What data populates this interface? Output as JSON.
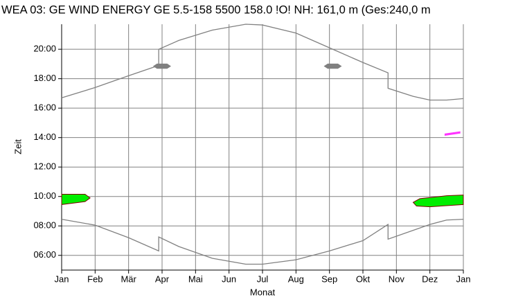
{
  "chart_data": {
    "type": "line",
    "title": "WEA 03: GE WIND ENERGY GE 5.5-158 5500 158.0 !O! NH: 161,0 m (Ges:240,0 m",
    "xlabel": "Monat",
    "ylabel": "Zeit",
    "xlim": [
      0,
      12
    ],
    "ylim": [
      5,
      21.7
    ],
    "grid": true,
    "xticks": [
      {
        "value": 0,
        "label": "Jan"
      },
      {
        "value": 1,
        "label": "Feb"
      },
      {
        "value": 2,
        "label": "Mär"
      },
      {
        "value": 3,
        "label": "Apr"
      },
      {
        "value": 4,
        "label": "Mai"
      },
      {
        "value": 5,
        "label": "Jun"
      },
      {
        "value": 6,
        "label": "Jul"
      },
      {
        "value": 7,
        "label": "Aug"
      },
      {
        "value": 8,
        "label": "Sep"
      },
      {
        "value": 9,
        "label": "Okt"
      },
      {
        "value": 10,
        "label": "Nov"
      },
      {
        "value": 11,
        "label": "Dez"
      },
      {
        "value": 12,
        "label": "Jan"
      }
    ],
    "yticks": [
      {
        "value": 6,
        "label": "06:00"
      },
      {
        "value": 8,
        "label": "08:00"
      },
      {
        "value": 10,
        "label": "10:00"
      },
      {
        "value": 12,
        "label": "12:00"
      },
      {
        "value": 14,
        "label": "14:00"
      },
      {
        "value": 16,
        "label": "16:00"
      },
      {
        "value": 18,
        "label": "18:00"
      },
      {
        "value": 20,
        "label": "20:00"
      }
    ],
    "series": [
      {
        "color": "#808080",
        "x": [
          0,
          1,
          2,
          2.9,
          2.9,
          3.5,
          4.5,
          5.5,
          6,
          7,
          8,
          9,
          9.75,
          9.75,
          10.5,
          11,
          11.5,
          12
        ],
        "y": [
          16.7,
          17.4,
          18.2,
          18.9,
          20.0,
          20.6,
          21.3,
          21.7,
          21.65,
          21.1,
          20.1,
          19.1,
          18.4,
          17.35,
          16.8,
          16.55,
          16.55,
          16.65
        ]
      },
      {
        "color": "#808080",
        "x": [
          0,
          1,
          2,
          2.9,
          2.9,
          3.5,
          4.5,
          5.5,
          6,
          7,
          8,
          9,
          9.75,
          9.75,
          10.5,
          11,
          11.5,
          12
        ],
        "y": [
          8.45,
          8.05,
          7.2,
          6.3,
          7.25,
          6.6,
          5.8,
          5.4,
          5.4,
          5.7,
          6.3,
          7.0,
          8.1,
          7.1,
          7.7,
          8.1,
          8.4,
          8.45
        ]
      }
    ],
    "areas": [
      {
        "color": "#00ee00",
        "x": [
          0,
          0.7,
          0.85,
          0.7,
          0,
          0
        ],
        "y": [
          10.15,
          10.15,
          9.9,
          9.65,
          9.45,
          10.15
        ]
      },
      {
        "color": "#00ee00",
        "x": [
          10.5,
          10.7,
          11.5,
          12,
          12,
          11,
          10.6
        ],
        "y": [
          9.6,
          9.85,
          10.05,
          10.1,
          9.45,
          9.3,
          9.35
        ]
      },
      {
        "color": "#ff33ff",
        "x": [
          11.45,
          11.9,
          11.9,
          11.45
        ],
        "y": [
          14.15,
          14.3,
          14.4,
          14.25
        ]
      },
      {
        "color": "#808080",
        "x": [
          2.75,
          2.85,
          3.15,
          3.25,
          3.15,
          2.85
        ],
        "y": [
          18.85,
          19.0,
          19.0,
          18.85,
          18.7,
          18.7
        ]
      },
      {
        "color": "#808080",
        "x": [
          7.85,
          7.95,
          8.25,
          8.35,
          8.25,
          7.95
        ],
        "y": [
          18.85,
          19.0,
          19.0,
          18.85,
          18.7,
          18.7
        ]
      }
    ]
  }
}
